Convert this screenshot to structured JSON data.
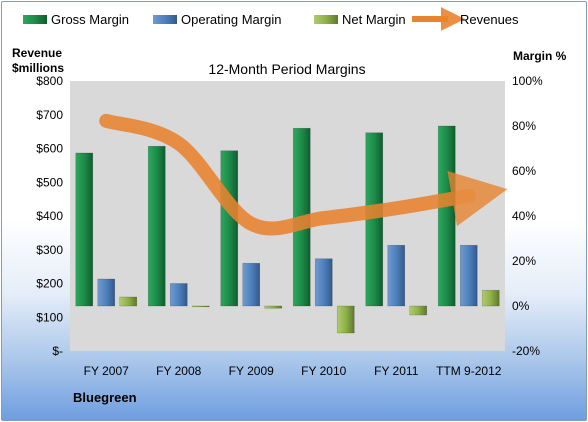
{
  "chart_data": {
    "type": "bar",
    "title": "12-Month Period Margins",
    "categories": [
      "FY 2007",
      "FY 2008",
      "FY 2009",
      "FY 2010",
      "FY 2011",
      "TTM 9-2012"
    ],
    "series": [
      {
        "name": "Gross Margin",
        "axis": "right",
        "values": [
          68,
          71,
          69,
          79,
          77,
          80
        ]
      },
      {
        "name": "Operating Margin",
        "axis": "right",
        "values": [
          12,
          10,
          19,
          21,
          27,
          27
        ]
      },
      {
        "name": "Net Margin",
        "axis": "right",
        "values": [
          4,
          0,
          -1,
          -12,
          -4,
          7
        ]
      },
      {
        "name": "Revenues",
        "type": "line",
        "axis": "left",
        "values": [
          682,
          615,
          377,
          394,
          423,
          460
        ]
      }
    ],
    "left_axis": {
      "label_line1": "Revenue",
      "label_line2": "$millions",
      "range": [
        0,
        800
      ],
      "ticks": [
        "$-",
        "$100",
        "$200",
        "$300",
        "$400",
        "$500",
        "$600",
        "$700",
        "$800"
      ]
    },
    "right_axis": {
      "label": "Margin %",
      "range": [
        -20,
        100
      ],
      "ticks": [
        "-20%",
        "0%",
        "20%",
        "40%",
        "60%",
        "80%",
        "100%"
      ]
    },
    "legend_position": "top",
    "company": "Bluegreen",
    "colors": {
      "gross": "#1e8b4a",
      "operating": "#4f81bd",
      "net": "#8fb04a",
      "revenues": "#e8832f",
      "plot_bg": "#d9d9d9"
    }
  }
}
